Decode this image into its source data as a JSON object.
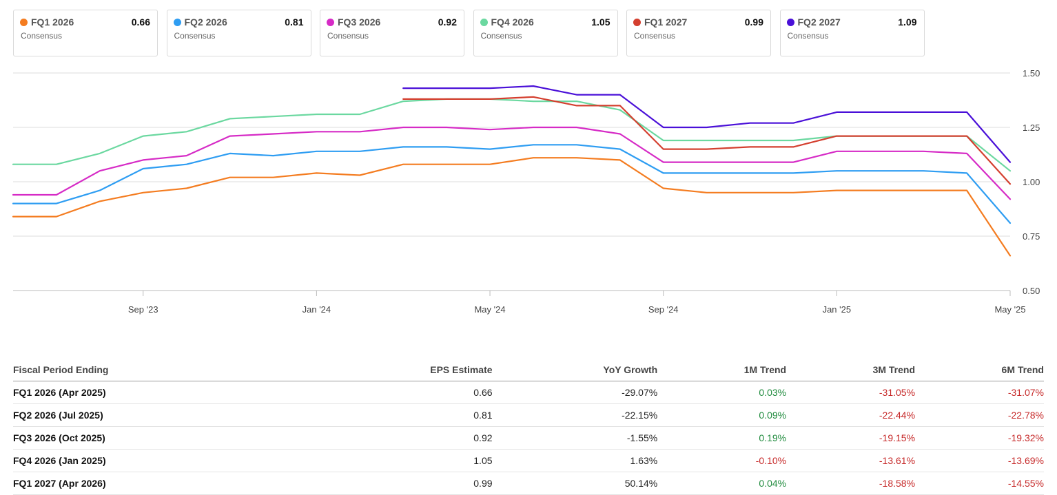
{
  "legend": [
    {
      "name": "FQ1 2026",
      "value": "0.66",
      "sub": "Consensus",
      "color": "#f47c20"
    },
    {
      "name": "FQ2 2026",
      "value": "0.81",
      "sub": "Consensus",
      "color": "#2e9df2"
    },
    {
      "name": "FQ3 2026",
      "value": "0.92",
      "sub": "Consensus",
      "color": "#d62bc6"
    },
    {
      "name": "FQ4 2026",
      "value": "1.05",
      "sub": "Consensus",
      "color": "#6bd8a0"
    },
    {
      "name": "FQ1 2027",
      "value": "0.99",
      "sub": "Consensus",
      "color": "#d43f2f"
    },
    {
      "name": "FQ2 2027",
      "value": "1.09",
      "sub": "Consensus",
      "color": "#4a10d8"
    }
  ],
  "chart_data": {
    "type": "line",
    "x_axis": {
      "type": "time",
      "min": "2023-06",
      "max": "2025-05",
      "tick_labels": [
        "Sep '23",
        "Jan '24",
        "May '24",
        "Sep '24",
        "Jan '25",
        "May '25"
      ],
      "tick_positions": [
        "2023-09",
        "2024-01",
        "2024-05",
        "2024-09",
        "2025-01",
        "2025-05"
      ]
    },
    "y_axis": {
      "min": 0.5,
      "max": 1.5,
      "ticks": [
        "0.50",
        "0.75",
        "1.00",
        "1.25",
        "1.50"
      ],
      "position": "right"
    },
    "grid": "horizontal",
    "x": [
      "2023-06",
      "2023-07",
      "2023-08",
      "2023-09",
      "2023-10",
      "2023-11",
      "2023-12",
      "2024-01",
      "2024-02",
      "2024-03",
      "2024-04",
      "2024-05",
      "2024-06",
      "2024-07",
      "2024-08",
      "2024-09",
      "2024-10",
      "2024-11",
      "2024-12",
      "2025-01",
      "2025-02",
      "2025-03",
      "2025-04",
      "2025-05"
    ],
    "series": [
      {
        "name": "FQ1 2026",
        "color": "#f47c20",
        "values": [
          0.84,
          0.84,
          0.91,
          0.95,
          0.97,
          1.02,
          1.02,
          1.04,
          1.03,
          1.08,
          1.08,
          1.08,
          1.11,
          1.11,
          1.1,
          0.97,
          0.95,
          0.95,
          0.95,
          0.96,
          0.96,
          0.96,
          0.96,
          0.66
        ]
      },
      {
        "name": "FQ2 2026",
        "color": "#2e9df2",
        "values": [
          0.9,
          0.9,
          0.96,
          1.06,
          1.08,
          1.13,
          1.12,
          1.14,
          1.14,
          1.16,
          1.16,
          1.15,
          1.17,
          1.17,
          1.15,
          1.04,
          1.04,
          1.04,
          1.04,
          1.05,
          1.05,
          1.05,
          1.04,
          0.81
        ]
      },
      {
        "name": "FQ3 2026",
        "color": "#d62bc6",
        "values": [
          0.94,
          0.94,
          1.05,
          1.1,
          1.12,
          1.21,
          1.22,
          1.23,
          1.23,
          1.25,
          1.25,
          1.24,
          1.25,
          1.25,
          1.22,
          1.09,
          1.09,
          1.09,
          1.09,
          1.14,
          1.14,
          1.14,
          1.13,
          0.92
        ]
      },
      {
        "name": "FQ4 2026",
        "color": "#6bd8a0",
        "values": [
          1.08,
          1.08,
          1.13,
          1.21,
          1.23,
          1.29,
          1.3,
          1.31,
          1.31,
          1.37,
          1.38,
          1.38,
          1.37,
          1.37,
          1.33,
          1.19,
          1.19,
          1.19,
          1.19,
          1.21,
          1.21,
          1.21,
          1.21,
          1.05
        ]
      },
      {
        "name": "FQ1 2027",
        "color": "#d43f2f",
        "values": [
          null,
          null,
          null,
          null,
          null,
          null,
          null,
          null,
          null,
          1.38,
          1.38,
          1.38,
          1.39,
          1.35,
          1.35,
          1.15,
          1.15,
          1.16,
          1.16,
          1.21,
          1.21,
          1.21,
          1.21,
          0.99
        ]
      },
      {
        "name": "FQ2 2027",
        "color": "#4a10d8",
        "values": [
          null,
          null,
          null,
          null,
          null,
          null,
          null,
          null,
          null,
          1.43,
          1.43,
          1.43,
          1.44,
          1.4,
          1.4,
          1.25,
          1.25,
          1.27,
          1.27,
          1.32,
          1.32,
          1.32,
          1.32,
          1.09
        ]
      }
    ]
  },
  "table": {
    "headers": [
      "Fiscal Period Ending",
      "EPS Estimate",
      "YoY Growth",
      "1M Trend",
      "3M Trend",
      "6M Trend"
    ],
    "rows": [
      [
        "FQ1 2026 (Apr 2025)",
        "0.66",
        "-29.07%",
        "0.03%",
        "-31.05%",
        "-31.07%"
      ],
      [
        "FQ2 2026 (Jul 2025)",
        "0.81",
        "-22.15%",
        "0.09%",
        "-22.44%",
        "-22.78%"
      ],
      [
        "FQ3 2026 (Oct 2025)",
        "0.92",
        "-1.55%",
        "0.19%",
        "-19.15%",
        "-19.32%"
      ],
      [
        "FQ4 2026 (Jan 2025)",
        "1.05",
        "1.63%",
        "-0.10%",
        "-13.61%",
        "-13.69%"
      ],
      [
        "FQ1 2027 (Apr 2026)",
        "0.99",
        "50.14%",
        "0.04%",
        "-18.58%",
        "-14.55%"
      ]
    ]
  }
}
